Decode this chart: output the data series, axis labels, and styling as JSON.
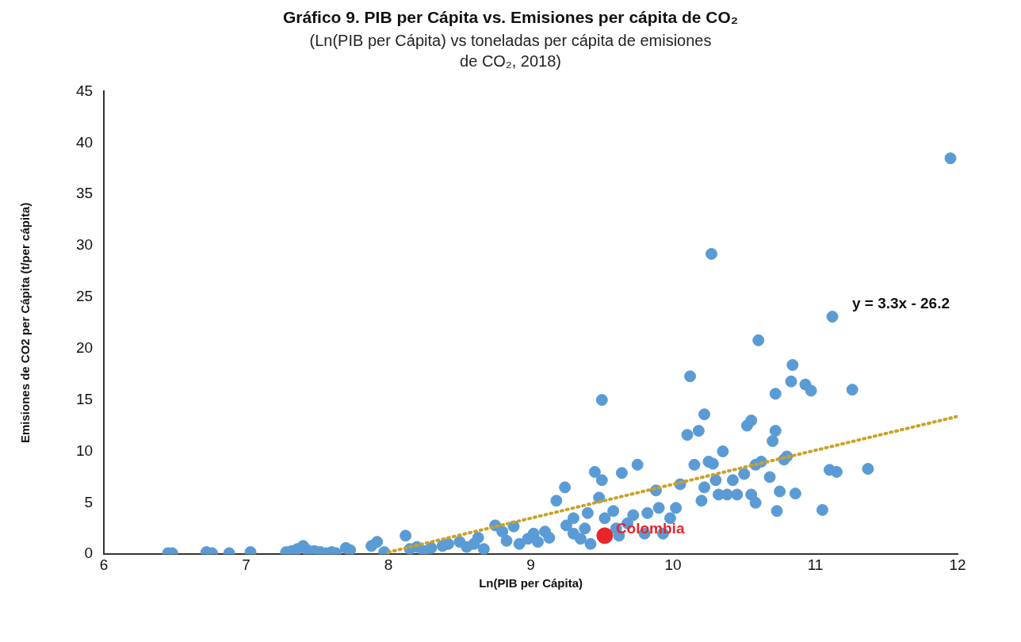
{
  "chart_data": {
    "type": "scatter",
    "title": "Gráfico 9. PIB per Cápita vs. Emisiones per cápita de CO₂",
    "subtitle": "(Ln(PIB per Cápita) vs toneladas per cápita de emisiones de CO₂, 2018)",
    "xlabel": "Ln(PIB per Cápita)",
    "ylabel": "Emisiones de CO2 per Cápita (t/per cápita)",
    "annotations": [
      "y = 3.3x - 26.2"
    ],
    "series": [
      {
        "color": "#5b9bd5",
        "x": [
          6.45,
          6.48,
          6.72,
          6.76,
          6.88,
          7.03,
          7.28,
          7.32,
          7.36,
          7.4,
          7.43,
          7.48,
          7.52,
          7.56,
          7.6,
          7.63,
          7.7,
          7.73,
          7.88,
          7.92,
          7.97,
          8.12,
          8.15,
          8.2,
          8.25,
          8.3,
          8.38,
          8.42,
          8.5,
          8.55,
          8.6,
          8.63,
          8.67,
          8.75,
          8.8,
          8.83,
          8.88,
          8.92,
          8.98,
          9.02,
          9.05,
          9.1,
          9.13,
          9.18,
          9.24,
          9.25,
          9.3,
          9.3,
          9.35,
          9.38,
          9.4,
          9.42,
          9.45,
          9.48,
          9.5,
          9.5,
          9.52,
          9.58,
          9.6,
          9.62,
          9.64,
          9.68,
          9.72,
          9.75,
          9.8,
          9.82,
          9.88,
          9.9,
          9.93,
          9.98,
          10.02,
          10.05,
          10.1,
          10.12,
          10.15,
          10.18,
          10.2,
          10.22,
          10.22,
          10.25,
          10.27,
          10.28,
          10.3,
          10.32,
          10.35,
          10.38,
          10.42,
          10.45,
          10.5,
          10.52,
          10.55,
          10.55,
          10.58,
          10.58,
          10.6,
          10.62,
          10.68,
          10.7,
          10.72,
          10.72,
          10.73,
          10.75,
          10.78,
          10.8,
          10.83,
          10.84,
          10.86,
          10.93,
          10.97,
          11.05,
          11.1,
          11.12,
          11.15,
          11.26,
          11.37,
          11.95
        ],
        "values": [
          0.1,
          0.1,
          0.2,
          0.1,
          0.1,
          0.2,
          0.2,
          0.3,
          0.5,
          0.8,
          0.4,
          0.3,
          0.2,
          0.1,
          0.2,
          0.1,
          0.6,
          0.4,
          0.8,
          1.2,
          0.2,
          1.8,
          0.5,
          0.7,
          0.3,
          0.6,
          0.8,
          1.0,
          1.2,
          0.7,
          1.0,
          1.6,
          0.5,
          2.8,
          2.2,
          1.3,
          2.7,
          1.0,
          1.5,
          2.0,
          1.2,
          2.2,
          1.6,
          5.2,
          6.5,
          2.8,
          3.5,
          2.0,
          1.5,
          2.5,
          4.0,
          1.0,
          8.0,
          5.5,
          7.2,
          15.0,
          3.5,
          4.2,
          2.5,
          1.8,
          7.9,
          3.0,
          3.8,
          8.7,
          2.0,
          4.0,
          6.2,
          4.5,
          2.0,
          3.5,
          4.5,
          6.8,
          11.6,
          17.3,
          8.7,
          12.0,
          5.2,
          13.6,
          6.5,
          9.0,
          29.2,
          8.8,
          7.2,
          5.8,
          10.0,
          5.8,
          7.2,
          5.8,
          7.8,
          12.5,
          13.0,
          5.8,
          8.7,
          5.0,
          20.8,
          9.0,
          7.5,
          11.0,
          15.6,
          12.0,
          4.2,
          6.1,
          9.2,
          9.5,
          16.8,
          18.4,
          5.9,
          16.5,
          15.9,
          4.3,
          8.2,
          23.1,
          8.0,
          16.0,
          8.3,
          38.5
        ]
      },
      {
        "name": "Colombia",
        "color": "#e8262a",
        "x": [
          9.52
        ],
        "values": [
          1.8
        ]
      },
      {
        "type": "line",
        "color": "#c9a227",
        "line_style": "dotted",
        "marker": "none",
        "x": [
          8,
          12
        ],
        "values": [
          0.2,
          13.4
        ]
      }
    ],
    "xlim": [
      6,
      12
    ],
    "xticks": [
      6,
      7,
      8,
      9,
      10,
      11,
      12
    ],
    "ylim": [
      0,
      45
    ],
    "yticks": [
      0,
      5,
      10,
      15,
      20,
      25,
      30,
      35,
      40,
      45
    ],
    "grid": false,
    "legend": false,
    "marker": "circle"
  }
}
